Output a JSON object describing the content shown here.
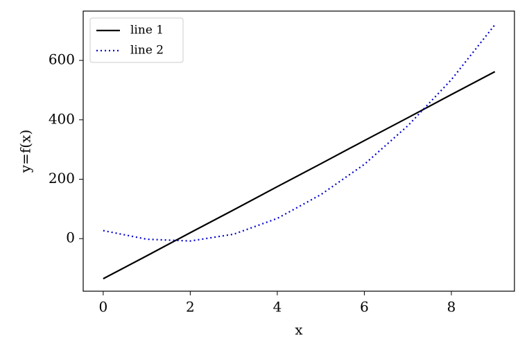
{
  "chart_data": {
    "type": "line",
    "xlabel": "x",
    "ylabel": "y=f(x)",
    "x": [
      0,
      1,
      2,
      3,
      4,
      5,
      6,
      7,
      8,
      9
    ],
    "series": [
      {
        "name": "line 1",
        "color": "#000000",
        "linestyle": "solid",
        "values": [
          -135,
          -58,
          20,
          97,
          175,
          252,
          330,
          407,
          485,
          562
        ]
      },
      {
        "name": "line 2",
        "color": "#0000cc",
        "linestyle": "dotted",
        "values": [
          27,
          -2,
          -8,
          15,
          68,
          148,
          250,
          380,
          535,
          720
        ]
      }
    ],
    "xlim": [
      -0.46,
      9.45
    ],
    "xticks": [
      0,
      2,
      4,
      6,
      8
    ],
    "ylim": [
      -177,
      766
    ],
    "yticks": [
      0,
      200,
      400,
      600
    ],
    "grid": false,
    "legend": "upper-left"
  }
}
